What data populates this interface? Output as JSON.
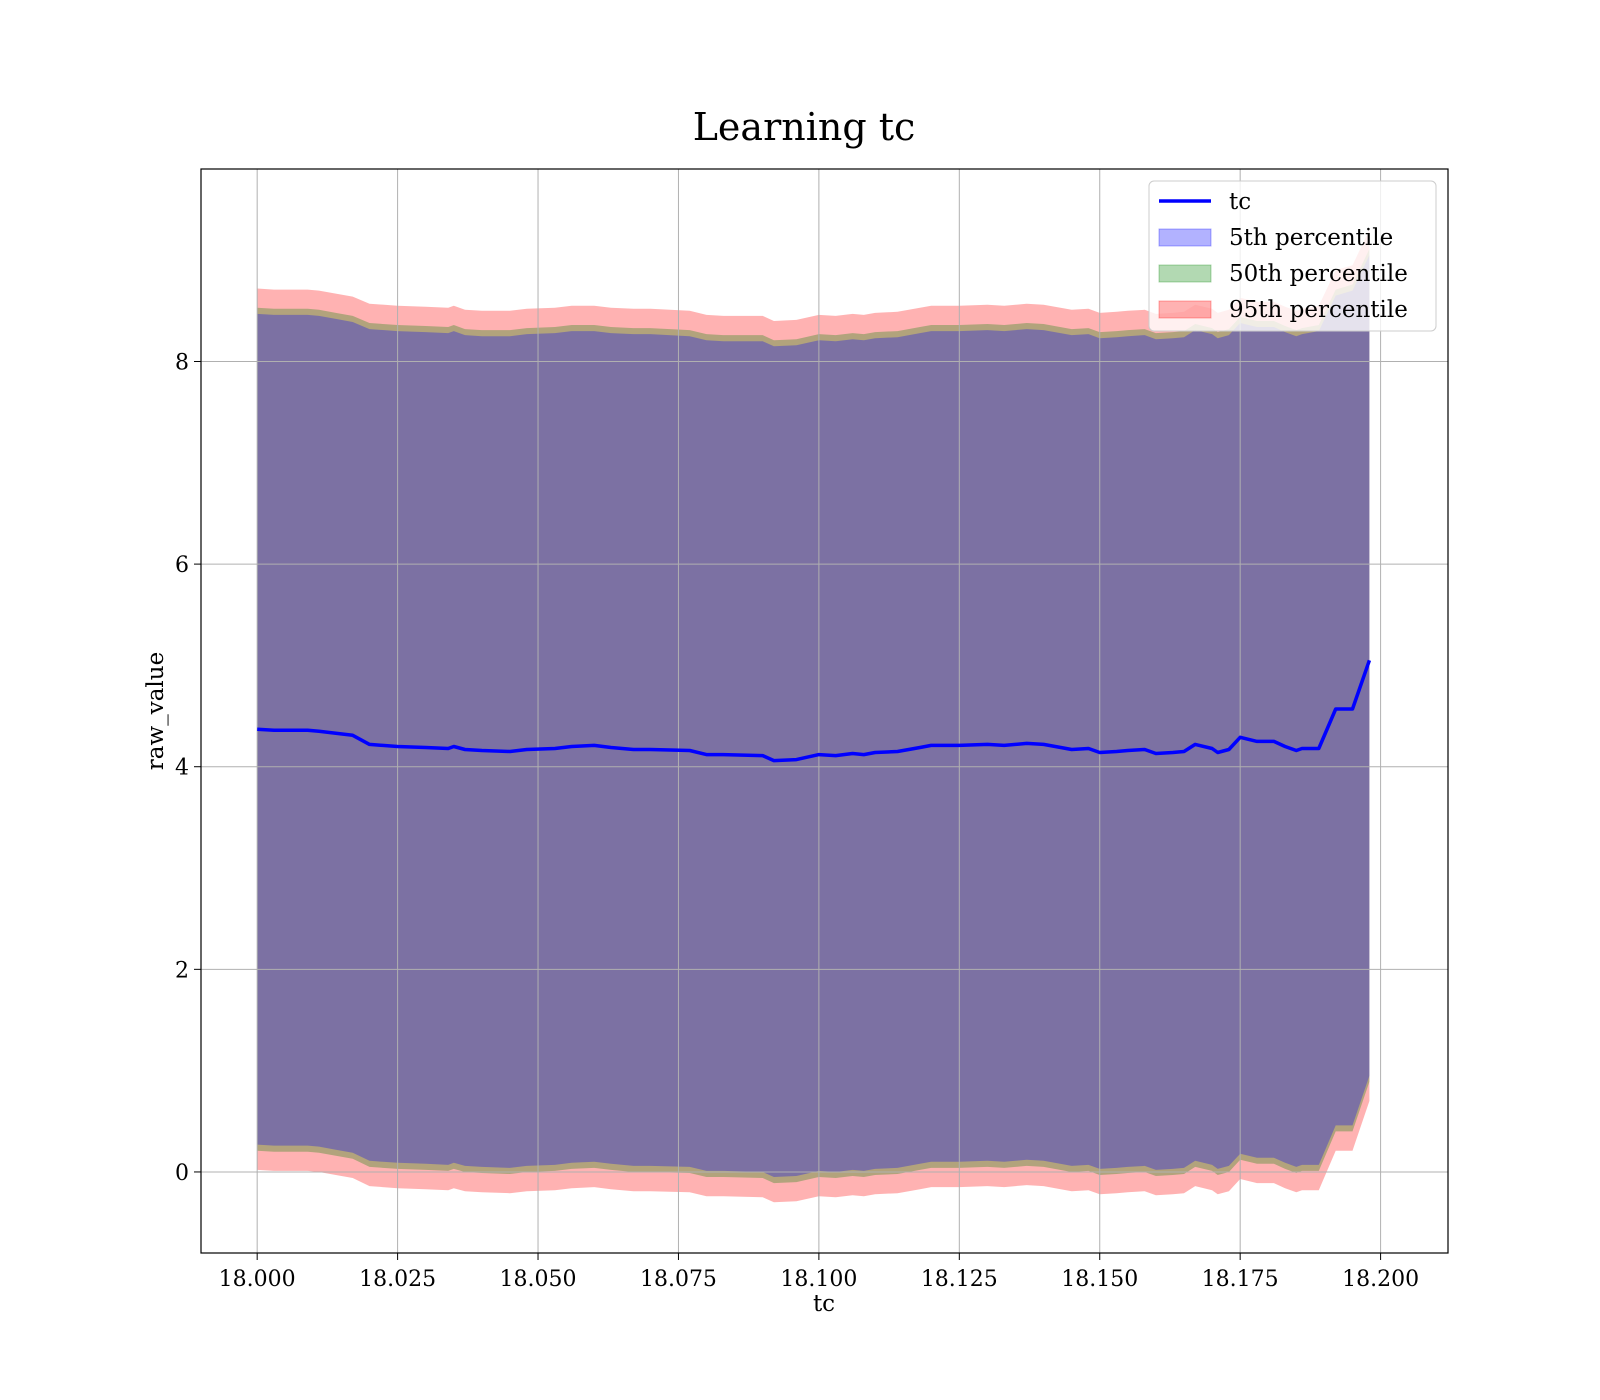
{
  "chart_data": {
    "type": "line",
    "title": "Learning tc",
    "xlabel": "tc",
    "ylabel": "raw_value",
    "xlim": [
      17.99,
      18.212
    ],
    "ylim": [
      -0.8,
      9.9
    ],
    "xticks": [
      18.0,
      18.025,
      18.05,
      18.075,
      18.1,
      18.125,
      18.15,
      18.175,
      18.2
    ],
    "xtick_labels": [
      "18.000",
      "18.025",
      "18.050",
      "18.075",
      "18.100",
      "18.125",
      "18.150",
      "18.175",
      "18.200"
    ],
    "yticks": [
      0,
      2,
      4,
      6,
      8
    ],
    "ytick_labels": [
      "0",
      "2",
      "4",
      "6",
      "8"
    ],
    "grid": true,
    "legend_position": "top-right",
    "legend": [
      {
        "label": "tc",
        "kind": "line",
        "color": "#0000ff"
      },
      {
        "label": "5th percentile",
        "kind": "patch",
        "color": "#0000ff"
      },
      {
        "label": "50th percentile",
        "kind": "patch",
        "color": "#008000"
      },
      {
        "label": "95th percentile",
        "kind": "patch",
        "color": "#ff0000"
      }
    ],
    "x": [
      18.0,
      18.003,
      18.006,
      18.009,
      18.011,
      18.014,
      18.017,
      18.02,
      18.025,
      18.03,
      18.034,
      18.035,
      18.037,
      18.04,
      18.045,
      18.048,
      18.053,
      18.056,
      18.06,
      18.063,
      18.067,
      18.07,
      18.077,
      18.08,
      18.083,
      18.09,
      18.092,
      18.096,
      18.1,
      18.103,
      18.106,
      18.108,
      18.11,
      18.114,
      18.118,
      18.12,
      18.125,
      18.13,
      18.133,
      18.137,
      18.14,
      18.145,
      18.148,
      18.15,
      18.153,
      18.155,
      18.158,
      18.16,
      18.163,
      18.165,
      18.167,
      18.17,
      18.171,
      18.173,
      18.175,
      18.178,
      18.181,
      18.183,
      18.185,
      18.186,
      18.189,
      18.192,
      18.195,
      18.198
    ],
    "series": [
      {
        "name": "tc",
        "color": "#0000ff",
        "values": [
          4.37,
          4.36,
          4.36,
          4.36,
          4.35,
          4.33,
          4.31,
          4.22,
          4.2,
          4.19,
          4.18,
          4.2,
          4.17,
          4.16,
          4.15,
          4.17,
          4.18,
          4.2,
          4.21,
          4.19,
          4.17,
          4.17,
          4.16,
          4.12,
          4.12,
          4.11,
          4.06,
          4.07,
          4.12,
          4.11,
          4.13,
          4.12,
          4.14,
          4.15,
          4.19,
          4.21,
          4.21,
          4.22,
          4.21,
          4.23,
          4.22,
          4.17,
          4.18,
          4.14,
          4.15,
          4.16,
          4.17,
          4.13,
          4.14,
          4.15,
          4.22,
          4.18,
          4.14,
          4.17,
          4.29,
          4.25,
          4.25,
          4.2,
          4.16,
          4.18,
          4.18,
          4.57,
          4.57,
          5.05
        ]
      }
    ],
    "bands": [
      {
        "name": "95th percentile",
        "color": "#ff0000",
        "opacity": 0.3,
        "upper": [
          8.72,
          8.71,
          8.71,
          8.71,
          8.7,
          8.67,
          8.64,
          8.57,
          8.55,
          8.54,
          8.53,
          8.55,
          8.51,
          8.5,
          8.5,
          8.52,
          8.53,
          8.55,
          8.55,
          8.53,
          8.52,
          8.52,
          8.5,
          8.46,
          8.45,
          8.45,
          8.4,
          8.41,
          8.46,
          8.45,
          8.47,
          8.46,
          8.48,
          8.49,
          8.53,
          8.55,
          8.55,
          8.56,
          8.55,
          8.57,
          8.56,
          8.51,
          8.52,
          8.48,
          8.49,
          8.5,
          8.51,
          8.47,
          8.48,
          8.49,
          8.56,
          8.52,
          8.48,
          8.51,
          8.63,
          8.59,
          8.59,
          8.54,
          8.5,
          8.52,
          8.55,
          8.9,
          8.95,
          9.3
        ],
        "lower": [
          0.02,
          0.01,
          0.01,
          0.01,
          0.0,
          -0.03,
          -0.06,
          -0.14,
          -0.16,
          -0.17,
          -0.18,
          -0.16,
          -0.19,
          -0.2,
          -0.21,
          -0.19,
          -0.18,
          -0.16,
          -0.15,
          -0.17,
          -0.19,
          -0.19,
          -0.2,
          -0.24,
          -0.24,
          -0.25,
          -0.3,
          -0.29,
          -0.24,
          -0.25,
          -0.23,
          -0.24,
          -0.22,
          -0.21,
          -0.17,
          -0.15,
          -0.15,
          -0.14,
          -0.15,
          -0.13,
          -0.14,
          -0.19,
          -0.18,
          -0.22,
          -0.21,
          -0.2,
          -0.19,
          -0.23,
          -0.22,
          -0.21,
          -0.14,
          -0.18,
          -0.22,
          -0.19,
          -0.07,
          -0.11,
          -0.11,
          -0.16,
          -0.2,
          -0.18,
          -0.18,
          0.21,
          0.21,
          0.7
        ]
      },
      {
        "name": "50th percentile",
        "color": "#008000",
        "opacity": 0.3,
        "upper": [
          8.53,
          8.52,
          8.52,
          8.52,
          8.51,
          8.48,
          8.45,
          8.38,
          8.36,
          8.35,
          8.34,
          8.36,
          8.32,
          8.31,
          8.31,
          8.33,
          8.34,
          8.36,
          8.36,
          8.34,
          8.33,
          8.33,
          8.31,
          8.27,
          8.26,
          8.26,
          8.21,
          8.22,
          8.27,
          8.26,
          8.28,
          8.27,
          8.29,
          8.3,
          8.34,
          8.36,
          8.36,
          8.37,
          8.36,
          8.38,
          8.37,
          8.32,
          8.33,
          8.29,
          8.3,
          8.31,
          8.32,
          8.28,
          8.29,
          8.3,
          8.37,
          8.33,
          8.29,
          8.32,
          8.44,
          8.4,
          8.4,
          8.35,
          8.31,
          8.33,
          8.36,
          8.71,
          8.76,
          9.11
        ],
        "lower": [
          0.21,
          0.2,
          0.2,
          0.2,
          0.19,
          0.16,
          0.13,
          0.05,
          0.03,
          0.02,
          0.01,
          0.03,
          0.0,
          -0.01,
          -0.02,
          0.0,
          0.01,
          0.03,
          0.04,
          0.02,
          0.0,
          0.0,
          -0.01,
          -0.05,
          -0.05,
          -0.06,
          -0.11,
          -0.1,
          -0.05,
          -0.06,
          -0.04,
          -0.05,
          -0.03,
          -0.02,
          0.02,
          0.04,
          0.04,
          0.05,
          0.04,
          0.06,
          0.05,
          0.0,
          0.01,
          -0.03,
          -0.02,
          -0.01,
          0.0,
          -0.04,
          -0.03,
          -0.02,
          0.05,
          0.01,
          -0.03,
          0.0,
          0.12,
          0.08,
          0.08,
          0.03,
          -0.01,
          0.01,
          0.01,
          0.4,
          0.4,
          0.89
        ]
      },
      {
        "name": "5th percentile",
        "color": "#0000ff",
        "opacity": 0.3,
        "upper": [
          8.47,
          8.46,
          8.46,
          8.46,
          8.45,
          8.42,
          8.39,
          8.32,
          8.3,
          8.29,
          8.28,
          8.3,
          8.26,
          8.25,
          8.25,
          8.27,
          8.28,
          8.3,
          8.3,
          8.28,
          8.27,
          8.27,
          8.25,
          8.21,
          8.2,
          8.2,
          8.15,
          8.16,
          8.21,
          8.2,
          8.22,
          8.21,
          8.23,
          8.24,
          8.28,
          8.3,
          8.3,
          8.31,
          8.3,
          8.32,
          8.31,
          8.26,
          8.27,
          8.23,
          8.24,
          8.25,
          8.26,
          8.22,
          8.23,
          8.24,
          8.31,
          8.27,
          8.23,
          8.26,
          8.38,
          8.34,
          8.34,
          8.29,
          8.25,
          8.27,
          8.3,
          8.65,
          8.7,
          9.05
        ],
        "lower": [
          0.27,
          0.26,
          0.26,
          0.26,
          0.25,
          0.22,
          0.19,
          0.11,
          0.09,
          0.08,
          0.07,
          0.09,
          0.06,
          0.05,
          0.04,
          0.06,
          0.07,
          0.09,
          0.1,
          0.08,
          0.06,
          0.06,
          0.05,
          0.01,
          0.01,
          0.0,
          -0.05,
          -0.04,
          0.01,
          0.0,
          0.02,
          0.01,
          0.03,
          0.04,
          0.08,
          0.1,
          0.1,
          0.11,
          0.1,
          0.12,
          0.11,
          0.06,
          0.07,
          0.03,
          0.04,
          0.05,
          0.06,
          0.02,
          0.03,
          0.04,
          0.11,
          0.07,
          0.03,
          0.06,
          0.18,
          0.14,
          0.14,
          0.09,
          0.05,
          0.07,
          0.07,
          0.46,
          0.46,
          0.95
        ]
      }
    ]
  }
}
